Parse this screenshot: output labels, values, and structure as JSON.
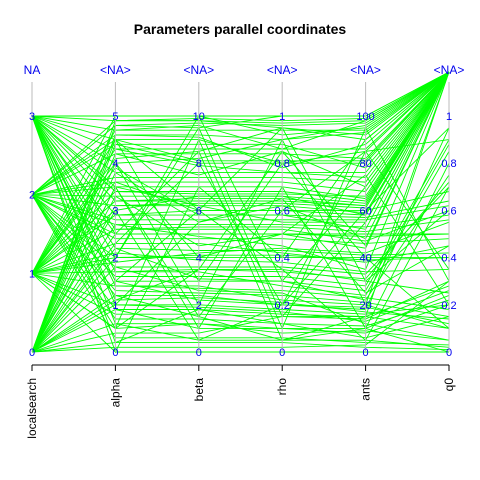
{
  "chart_data": {
    "type": "parallel_coordinates",
    "title": "Parameters parallel coordinates",
    "line_color": "#00ff00",
    "axis_color": "#bbbbbb",
    "label_color": "#0000ee",
    "axes": [
      {
        "name": "localsearch",
        "na_label": "NA",
        "ticks": [
          "0",
          "1",
          "2",
          "3"
        ],
        "range": [
          0,
          3
        ]
      },
      {
        "name": "alpha",
        "na_label": "<NA>",
        "ticks": [
          "0",
          "1",
          "2",
          "3",
          "4",
          "5"
        ],
        "range": [
          0,
          5
        ]
      },
      {
        "name": "beta",
        "na_label": "<NA>",
        "ticks": [
          "0",
          "2",
          "4",
          "6",
          "8",
          "10"
        ],
        "range": [
          0,
          10
        ]
      },
      {
        "name": "rho",
        "na_label": "<NA>",
        "ticks": [
          "0",
          "0.2",
          "0.4",
          "0.6",
          "0.8",
          "1"
        ],
        "range": [
          0,
          1
        ]
      },
      {
        "name": "ants",
        "na_label": "<NA>",
        "ticks": [
          "0",
          "20",
          "40",
          "60",
          "80",
          "100"
        ],
        "range": [
          0,
          100
        ]
      },
      {
        "name": "q0",
        "na_label": "<NA>",
        "ticks": [
          "0",
          "0.2",
          "0.4",
          "0.6",
          "0.8",
          "1"
        ],
        "range": [
          0,
          1
        ]
      }
    ],
    "lines": [
      [
        0,
        4.2,
        7.5,
        0.85,
        70,
        null
      ],
      [
        0,
        4.9,
        9.8,
        0.95,
        92,
        null
      ],
      [
        0,
        3.1,
        6.2,
        0.55,
        55,
        null
      ],
      [
        0,
        1.2,
        1.5,
        0.05,
        5,
        0.02
      ],
      [
        0,
        0.4,
        0.8,
        0.15,
        15,
        0.1
      ],
      [
        0,
        2.7,
        4.9,
        0.45,
        35,
        null
      ],
      [
        0,
        4.6,
        9.1,
        0.78,
        88,
        null
      ],
      [
        0,
        0.1,
        0.2,
        0.02,
        3,
        0.3
      ],
      [
        0,
        3.8,
        5.5,
        0.62,
        48,
        null
      ],
      [
        0,
        2.2,
        3.1,
        0.3,
        22,
        0.75
      ],
      [
        0,
        1.8,
        2.6,
        0.25,
        12,
        0.05
      ],
      [
        0,
        4.0,
        8.2,
        0.9,
        96,
        null
      ],
      [
        0,
        0.9,
        1.0,
        0.1,
        8,
        0.2
      ],
      [
        0,
        3.5,
        7.0,
        0.7,
        65,
        null
      ],
      [
        0,
        2.5,
        5.0,
        0.5,
        50,
        0.5
      ],
      [
        0,
        4.4,
        8.8,
        0.88,
        78,
        null
      ],
      [
        0,
        1.5,
        2.2,
        0.2,
        18,
        0.95
      ],
      [
        0,
        0.6,
        0.5,
        0.05,
        10,
        0.0
      ],
      [
        0,
        3.0,
        6.6,
        0.66,
        58,
        null
      ],
      [
        0,
        4.8,
        9.5,
        1.0,
        100,
        null
      ],
      [
        0,
        2.0,
        4.0,
        0.4,
        40,
        0.4
      ],
      [
        0,
        1.1,
        3.5,
        0.35,
        30,
        0.25
      ],
      [
        0,
        3.3,
        4.5,
        0.5,
        44,
        null
      ],
      [
        0,
        0.2,
        1.8,
        0.12,
        6,
        0.15
      ],
      [
        1,
        4.5,
        9.0,
        0.8,
        85,
        null
      ],
      [
        1,
        3.6,
        7.2,
        0.72,
        68,
        null
      ],
      [
        1,
        2.9,
        6.0,
        0.6,
        60,
        0.68
      ],
      [
        1,
        1.0,
        2.0,
        0.18,
        16,
        0.2
      ],
      [
        1,
        0.5,
        1.2,
        0.08,
        9,
        0.05
      ],
      [
        1,
        4.1,
        8.5,
        0.95,
        90,
        null
      ],
      [
        1,
        2.3,
        4.6,
        0.42,
        38,
        0.45
      ],
      [
        1,
        3.9,
        5.8,
        0.58,
        52,
        null
      ],
      [
        1,
        1.7,
        3.4,
        0.28,
        24,
        0.85
      ],
      [
        1,
        0.0,
        0.0,
        0.0,
        0,
        0.0
      ],
      [
        1,
        4.7,
        9.6,
        0.86,
        98,
        null
      ],
      [
        1,
        2.6,
        5.2,
        0.52,
        47,
        0.6
      ],
      [
        1,
        3.2,
        6.4,
        0.64,
        62,
        null
      ],
      [
        1,
        1.4,
        2.8,
        0.22,
        20,
        0.1
      ],
      [
        1,
        4.3,
        7.9,
        0.76,
        74,
        null
      ],
      [
        1,
        0.8,
        1.6,
        0.15,
        14,
        0.3
      ],
      [
        1,
        3.4,
        6.8,
        0.68,
        64,
        null
      ],
      [
        1,
        2.1,
        3.9,
        0.38,
        34,
        0.35
      ],
      [
        1,
        5.0,
        10.0,
        0.92,
        95,
        null
      ],
      [
        1,
        1.9,
        4.2,
        0.44,
        42,
        0.55
      ],
      [
        2,
        4.9,
        9.9,
        0.98,
        99,
        null
      ],
      [
        2,
        3.7,
        7.4,
        0.74,
        72,
        null
      ],
      [
        2,
        2.8,
        5.6,
        0.56,
        56,
        0.62
      ],
      [
        2,
        1.3,
        2.5,
        0.24,
        21,
        0.15
      ],
      [
        2,
        0.3,
        0.6,
        0.06,
        4,
        0.03
      ],
      [
        2,
        4.2,
        8.4,
        0.84,
        82,
        null
      ],
      [
        2,
        2.4,
        4.8,
        0.48,
        46,
        0.48
      ],
      [
        2,
        3.6,
        6.0,
        0.6,
        58,
        null
      ],
      [
        2,
        1.6,
        3.2,
        0.32,
        28,
        0.9
      ],
      [
        2,
        0.7,
        1.4,
        0.12,
        11,
        0.22
      ],
      [
        2,
        4.6,
        9.2,
        0.9,
        93,
        null
      ],
      [
        2,
        2.7,
        5.4,
        0.54,
        53,
        0.58
      ],
      [
        2,
        3.1,
        6.3,
        0.63,
        61,
        null
      ],
      [
        2,
        1.2,
        2.4,
        0.2,
        19,
        0.12
      ],
      [
        2,
        4.4,
        8.0,
        0.8,
        80,
        null
      ],
      [
        2,
        0.9,
        1.8,
        0.16,
        15,
        0.28
      ],
      [
        2,
        3.3,
        6.6,
        0.66,
        63,
        null
      ],
      [
        2,
        2.0,
        4.1,
        0.41,
        39,
        0.4
      ],
      [
        2,
        4.8,
        9.7,
        0.96,
        97,
        null
      ],
      [
        2,
        1.8,
        3.6,
        0.36,
        33,
        0.7
      ],
      [
        3,
        5.0,
        10.0,
        1.0,
        100,
        null
      ],
      [
        3,
        3.8,
        7.6,
        0.76,
        76,
        null
      ],
      [
        3,
        2.9,
        5.8,
        0.58,
        57,
        0.64
      ],
      [
        3,
        1.4,
        2.7,
        0.26,
        23,
        0.18
      ],
      [
        3,
        0.2,
        0.4,
        0.04,
        2,
        0.01
      ],
      [
        3,
        4.3,
        8.6,
        0.86,
        86,
        null
      ],
      [
        3,
        2.5,
        5.0,
        0.5,
        49,
        0.5
      ],
      [
        3,
        3.5,
        6.2,
        0.62,
        59,
        null
      ],
      [
        3,
        1.5,
        3.0,
        0.3,
        26,
        0.88
      ],
      [
        3,
        0.6,
        1.2,
        0.1,
        10,
        0.24
      ],
      [
        3,
        4.7,
        9.4,
        0.94,
        94,
        null
      ],
      [
        3,
        2.6,
        5.3,
        0.53,
        51,
        0.56
      ],
      [
        3,
        3.2,
        6.5,
        0.65,
        62,
        null
      ],
      [
        3,
        1.1,
        2.3,
        0.21,
        17,
        0.14
      ],
      [
        3,
        4.5,
        8.1,
        0.81,
        81,
        null
      ],
      [
        3,
        1.0,
        1.9,
        0.17,
        13,
        0.26
      ],
      [
        3,
        3.4,
        6.7,
        0.67,
        66,
        null
      ],
      [
        3,
        2.2,
        4.3,
        0.43,
        41,
        0.42
      ],
      [
        3,
        4.9,
        9.8,
        0.97,
        98,
        null
      ],
      [
        3,
        1.7,
        3.5,
        0.34,
        31,
        0.72
      ],
      [
        0,
        2.3,
        8.0,
        0.2,
        85,
        0.9
      ],
      [
        1,
        4.0,
        2.0,
        0.9,
        20,
        null
      ],
      [
        2,
        0.5,
        9.0,
        0.1,
        95,
        0.3
      ],
      [
        3,
        1.5,
        6.0,
        0.95,
        30,
        0.6
      ],
      [
        0,
        3.5,
        1.0,
        0.7,
        10,
        0.8
      ],
      [
        1,
        2.0,
        10.0,
        0.3,
        70,
        null
      ],
      [
        2,
        4.5,
        3.0,
        0.8,
        40,
        0.1
      ],
      [
        3,
        0.0,
        7.0,
        0.4,
        90,
        null
      ],
      [
        0,
        1.0,
        5.5,
        0.65,
        25,
        0.45
      ],
      [
        1,
        3.0,
        0.5,
        0.2,
        60,
        0.95
      ],
      [
        2,
        2.5,
        8.5,
        0.05,
        15,
        null
      ],
      [
        3,
        4.0,
        4.0,
        0.5,
        75,
        0.2
      ],
      [
        0,
        4.5,
        6.0,
        0.35,
        5,
        0.7
      ],
      [
        1,
        0.5,
        3.5,
        0.85,
        45,
        null
      ],
      [
        2,
        3.5,
        1.5,
        0.6,
        85,
        0.35
      ],
      [
        3,
        2.0,
        9.5,
        0.15,
        55,
        null
      ]
    ]
  }
}
